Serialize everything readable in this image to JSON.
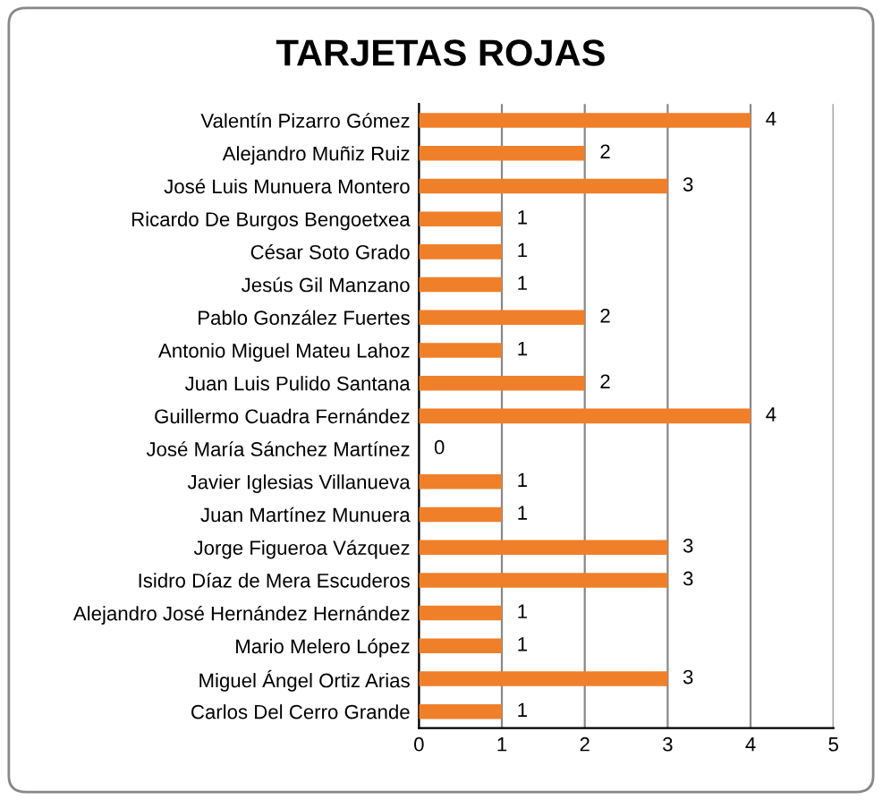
{
  "chart_data": {
    "type": "bar",
    "orientation": "horizontal",
    "title": "TARJETAS ROJAS",
    "categories": [
      "Valentín Pizarro Gómez",
      "Alejandro Muñiz Ruiz",
      "José Luis Munuera Montero",
      "Ricardo De Burgos Bengoetxea",
      "César Soto Grado",
      "Jesús Gil Manzano",
      "Pablo González Fuertes",
      "Antonio Miguel Mateu Lahoz",
      "Juan Luis Pulido Santana",
      "Guillermo Cuadra Fernández",
      "José María Sánchez Martínez",
      "Javier Iglesias Villanueva",
      "Juan Martínez Munuera",
      "Jorge Figueroa Vázquez",
      "Isidro Díaz de Mera Escuderos",
      "Alejandro José Hernández Hernández",
      "Mario Melero López",
      "Miguel Ángel Ortiz Arias",
      "Carlos Del Cerro Grande"
    ],
    "values": [
      4,
      2,
      3,
      1,
      1,
      1,
      2,
      1,
      2,
      4,
      0,
      1,
      1,
      3,
      3,
      1,
      1,
      3,
      1
    ],
    "color": "#f07f2a",
    "xlim": [
      0,
      5
    ],
    "xticks": [
      0,
      1,
      2,
      3,
      4,
      5
    ],
    "grid": "x",
    "data_labels": true
  }
}
